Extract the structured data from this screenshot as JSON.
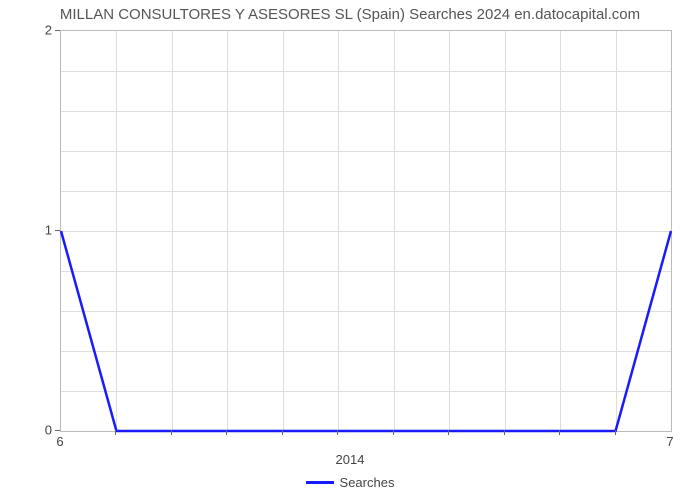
{
  "chart": {
    "type": "line",
    "title": "MILLAN CONSULTORES Y ASESORES SL (Spain) Searches 2024 en.datocapital.com",
    "title_fontsize": 15,
    "title_color": "#555555",
    "background_color": "#ffffff",
    "plot_border_color": "#bbbbbb",
    "grid_color": "#dddddd",
    "ylim": [
      0,
      2
    ],
    "ytick_step_major": 1,
    "yticks": [
      0,
      1,
      2
    ],
    "y_minor_count": 4,
    "x_range_labels": [
      "6",
      "7"
    ],
    "x_minor_count": 11,
    "xaxis_label": "2014",
    "axis_label_fontsize": 13,
    "tick_label_color": "#444444",
    "series": [
      {
        "name": "Searches",
        "color": "#1a1aff",
        "line_width": 2.5,
        "x": [
          0,
          1,
          2,
          3,
          4,
          5,
          6,
          7,
          8,
          9,
          10,
          11
        ],
        "y": [
          1,
          0,
          0,
          0,
          0,
          0,
          0,
          0,
          0,
          0,
          0,
          1
        ]
      }
    ],
    "legend_label": "Searches",
    "legend_position": "bottom-center"
  }
}
